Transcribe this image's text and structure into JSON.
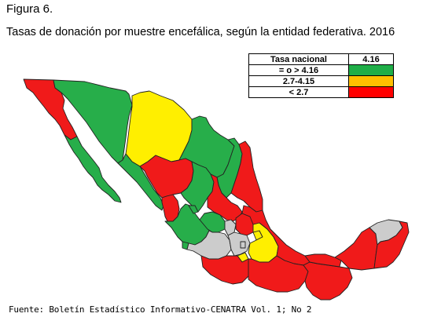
{
  "figure_label": "Figura 6.",
  "title": "Tasas de donación por muestre encefálica, según la entidad federativa. 2016",
  "legend": {
    "header_label": "Tasa nacional",
    "header_value": "4.16",
    "rows": [
      {
        "label": "= o > 4.16",
        "color": "#1fae48",
        "category": "high"
      },
      {
        "label": "2.7-4.15",
        "color": "#ffc000",
        "category": "medium"
      },
      {
        "label": "< 2.7",
        "color": "#ff0000",
        "category": "low"
      }
    ]
  },
  "map_colors": {
    "high": "#27ae4a",
    "medium": "#ffef00",
    "low": "#f01a1a",
    "border": "#222222"
  },
  "states": [
    {
      "name": "Baja California",
      "category": "low"
    },
    {
      "name": "Baja California Sur",
      "category": "high"
    },
    {
      "name": "Sonora",
      "category": "high"
    },
    {
      "name": "Chihuahua",
      "category": "medium"
    },
    {
      "name": "Coahuila",
      "category": "high"
    },
    {
      "name": "Nuevo León",
      "category": "high"
    },
    {
      "name": "Tamaulipas",
      "category": "low"
    },
    {
      "name": "Sinaloa",
      "category": "high"
    },
    {
      "name": "Durango",
      "category": "low"
    },
    {
      "name": "Zacatecas",
      "category": "high"
    },
    {
      "name": "San Luis Potosí",
      "category": "low"
    },
    {
      "name": "Nayarit",
      "category": "low"
    },
    {
      "name": "Jalisco",
      "category": "high"
    },
    {
      "name": "Aguascalientes",
      "category": "high"
    },
    {
      "name": "Guanajuato",
      "category": "high"
    },
    {
      "name": "Querétaro",
      "category": "high"
    },
    {
      "name": "Hidalgo",
      "category": "low"
    },
    {
      "name": "Colima",
      "category": "high"
    },
    {
      "name": "Michoacán",
      "category": "high"
    },
    {
      "name": "Estado de México",
      "category": "medium"
    },
    {
      "name": "Ciudad de México",
      "category": "high"
    },
    {
      "name": "Morelos",
      "category": "medium"
    },
    {
      "name": "Tlaxcala",
      "category": "medium"
    },
    {
      "name": "Puebla",
      "category": "medium"
    },
    {
      "name": "Veracruz",
      "category": "low"
    },
    {
      "name": "Guerrero",
      "category": "low"
    },
    {
      "name": "Oaxaca",
      "category": "low"
    },
    {
      "name": "Chiapas",
      "category": "low"
    },
    {
      "name": "Tabasco",
      "category": "low"
    },
    {
      "name": "Campeche",
      "category": "low"
    },
    {
      "name": "Yucatán",
      "category": "high"
    },
    {
      "name": "Quintana Roo",
      "category": "low"
    }
  ],
  "source": "Fuente: Boletín Estadístico Informativo-CENATRA Vol. 1; No 2"
}
